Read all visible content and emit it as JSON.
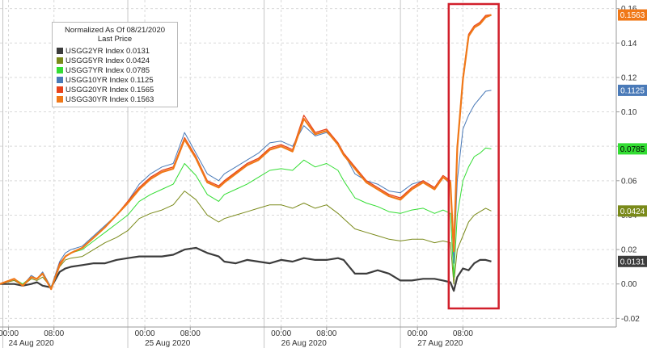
{
  "chart_data": {
    "type": "line",
    "legend": {
      "title": "Normalized As Of 08/21/2020",
      "subtitle": "Last Price",
      "placement": "top-left"
    },
    "y_axis": {
      "side": "right",
      "range": [
        -0.025,
        0.165
      ],
      "ticks": [
        -0.02,
        0.0,
        0.02,
        0.04,
        0.06,
        0.08,
        0.1,
        0.12,
        0.14,
        0.16
      ],
      "tick_labels": [
        "-0.02",
        "0.00",
        "0.02",
        "0.04",
        "0.06",
        "0.08",
        "0.10",
        "0.12",
        "0.14",
        "0.16"
      ]
    },
    "x_axis": {
      "range": [
        -1.5,
        107
      ],
      "time_ticks": [
        {
          "t": 0,
          "label": "00:00"
        },
        {
          "t": 8,
          "label": "08:00"
        },
        {
          "t": 24,
          "label": "00:00"
        },
        {
          "t": 32,
          "label": "08:00"
        },
        {
          "t": 48,
          "label": "00:00"
        },
        {
          "t": 56,
          "label": "08:00"
        },
        {
          "t": 72,
          "label": "00:00"
        },
        {
          "t": 80,
          "label": "08:00"
        }
      ],
      "day_labels": [
        {
          "t": 4,
          "label": "24 Aug 2020"
        },
        {
          "t": 28,
          "label": "25 Aug 2020"
        },
        {
          "t": 52,
          "label": "26 Aug 2020"
        },
        {
          "t": 76,
          "label": "27 Aug 2020"
        }
      ],
      "session_dividers": [
        -1,
        21,
        45,
        69
      ],
      "grid": true
    },
    "highlight": {
      "x_start": 77.5,
      "x_end": 86.3,
      "color": "#d11f2b"
    },
    "x": [
      -1.5,
      1,
      2.5,
      4,
      5,
      6,
      7.5,
      9,
      10,
      11,
      13,
      15,
      17,
      19,
      21,
      23,
      25,
      27,
      29,
      31,
      33,
      35,
      37,
      38,
      40,
      42,
      44,
      46,
      48,
      50,
      52,
      54,
      56,
      58,
      59,
      61,
      63,
      65,
      67,
      69,
      71,
      73,
      75,
      76.5,
      77.8,
      78.4,
      79,
      80,
      81,
      82,
      83,
      84,
      85
    ],
    "series": [
      {
        "name": "USGG2YR Index",
        "last": 0.0131,
        "last_label": "0.0131",
        "color": "#3c3c3c",
        "width": 2.2,
        "values": [
          0.0,
          0.0,
          -0.001,
          0.0,
          0.001,
          -0.001,
          -0.002,
          0.007,
          0.009,
          0.01,
          0.011,
          0.012,
          0.012,
          0.014,
          0.015,
          0.016,
          0.016,
          0.016,
          0.017,
          0.02,
          0.021,
          0.018,
          0.016,
          0.013,
          0.012,
          0.014,
          0.013,
          0.012,
          0.014,
          0.013,
          0.015,
          0.014,
          0.014,
          0.015,
          0.014,
          0.006,
          0.006,
          0.008,
          0.006,
          0.002,
          0.002,
          0.003,
          0.003,
          0.002,
          0.001,
          -0.004,
          0.004,
          0.009,
          0.008,
          0.012,
          0.014,
          0.014,
          0.0131
        ]
      },
      {
        "name": "USGG5YR Index",
        "last": 0.0424,
        "last_label": "0.0424",
        "color": "#7a8a1a",
        "width": 1.0,
        "values": [
          0.0,
          0.002,
          -0.001,
          0.003,
          0.002,
          0.004,
          -0.002,
          0.01,
          0.014,
          0.015,
          0.016,
          0.02,
          0.024,
          0.027,
          0.031,
          0.038,
          0.041,
          0.043,
          0.046,
          0.054,
          0.049,
          0.04,
          0.036,
          0.038,
          0.04,
          0.042,
          0.044,
          0.046,
          0.046,
          0.044,
          0.047,
          0.044,
          0.046,
          0.041,
          0.038,
          0.032,
          0.03,
          0.028,
          0.026,
          0.025,
          0.026,
          0.026,
          0.024,
          0.025,
          0.024,
          0.0,
          0.02,
          0.028,
          0.036,
          0.04,
          0.042,
          0.044,
          0.0424
        ]
      },
      {
        "name": "USGG7YR Index",
        "last": 0.0785,
        "last_label": "0.0785",
        "color": "#33dd33",
        "width": 1.0,
        "values": [
          0.0,
          0.003,
          0.0,
          0.004,
          0.003,
          0.006,
          -0.002,
          0.012,
          0.016,
          0.018,
          0.02,
          0.025,
          0.03,
          0.035,
          0.04,
          0.048,
          0.052,
          0.055,
          0.058,
          0.07,
          0.063,
          0.052,
          0.048,
          0.052,
          0.055,
          0.058,
          0.062,
          0.066,
          0.067,
          0.066,
          0.072,
          0.068,
          0.07,
          0.066,
          0.06,
          0.05,
          0.047,
          0.045,
          0.042,
          0.041,
          0.043,
          0.044,
          0.041,
          0.043,
          0.041,
          0.004,
          0.04,
          0.06,
          0.068,
          0.074,
          0.076,
          0.079,
          0.0785
        ]
      },
      {
        "name": "USGG10YR Index",
        "last": 0.1125,
        "last_label": "0.1125",
        "color": "#4a7ab8",
        "width": 1.0,
        "values": [
          0.0,
          0.003,
          -0.001,
          0.005,
          0.003,
          0.007,
          -0.002,
          0.013,
          0.018,
          0.02,
          0.022,
          0.028,
          0.034,
          0.04,
          0.048,
          0.058,
          0.064,
          0.068,
          0.07,
          0.088,
          0.076,
          0.064,
          0.06,
          0.064,
          0.068,
          0.072,
          0.076,
          0.082,
          0.083,
          0.08,
          0.092,
          0.086,
          0.088,
          0.082,
          0.076,
          0.064,
          0.06,
          0.058,
          0.054,
          0.053,
          0.058,
          0.06,
          0.056,
          0.062,
          0.058,
          0.012,
          0.06,
          0.09,
          0.098,
          0.104,
          0.108,
          0.112,
          0.1125
        ]
      },
      {
        "name": "USGG20YR Index",
        "last": 0.1565,
        "last_label": "0.1565",
        "color": "#e8421a",
        "width": 1.3,
        "values": [
          0.0,
          0.003,
          -0.001,
          0.004,
          0.003,
          0.006,
          -0.003,
          0.012,
          0.016,
          0.018,
          0.021,
          0.027,
          0.033,
          0.04,
          0.048,
          0.056,
          0.062,
          0.066,
          0.068,
          0.085,
          0.074,
          0.06,
          0.057,
          0.06,
          0.065,
          0.07,
          0.073,
          0.079,
          0.081,
          0.078,
          0.098,
          0.088,
          0.09,
          0.082,
          0.076,
          0.068,
          0.06,
          0.056,
          0.052,
          0.05,
          0.056,
          0.06,
          0.056,
          0.063,
          0.06,
          0.02,
          0.08,
          0.12,
          0.145,
          0.15,
          0.152,
          0.156,
          0.1565
        ]
      },
      {
        "name": "USGG30YR Index",
        "last": 0.1563,
        "last_label": "0.1563",
        "color": "#f07818",
        "width": 2.2,
        "values": [
          0.0,
          0.003,
          -0.001,
          0.004,
          0.003,
          0.006,
          -0.003,
          0.011,
          0.016,
          0.018,
          0.021,
          0.027,
          0.033,
          0.04,
          0.047,
          0.055,
          0.061,
          0.065,
          0.067,
          0.084,
          0.073,
          0.059,
          0.056,
          0.059,
          0.064,
          0.069,
          0.072,
          0.078,
          0.08,
          0.077,
          0.096,
          0.087,
          0.089,
          0.081,
          0.075,
          0.067,
          0.059,
          0.055,
          0.051,
          0.049,
          0.055,
          0.059,
          0.055,
          0.062,
          0.059,
          0.019,
          0.079,
          0.119,
          0.144,
          0.149,
          0.151,
          0.155,
          0.1563
        ]
      }
    ]
  }
}
